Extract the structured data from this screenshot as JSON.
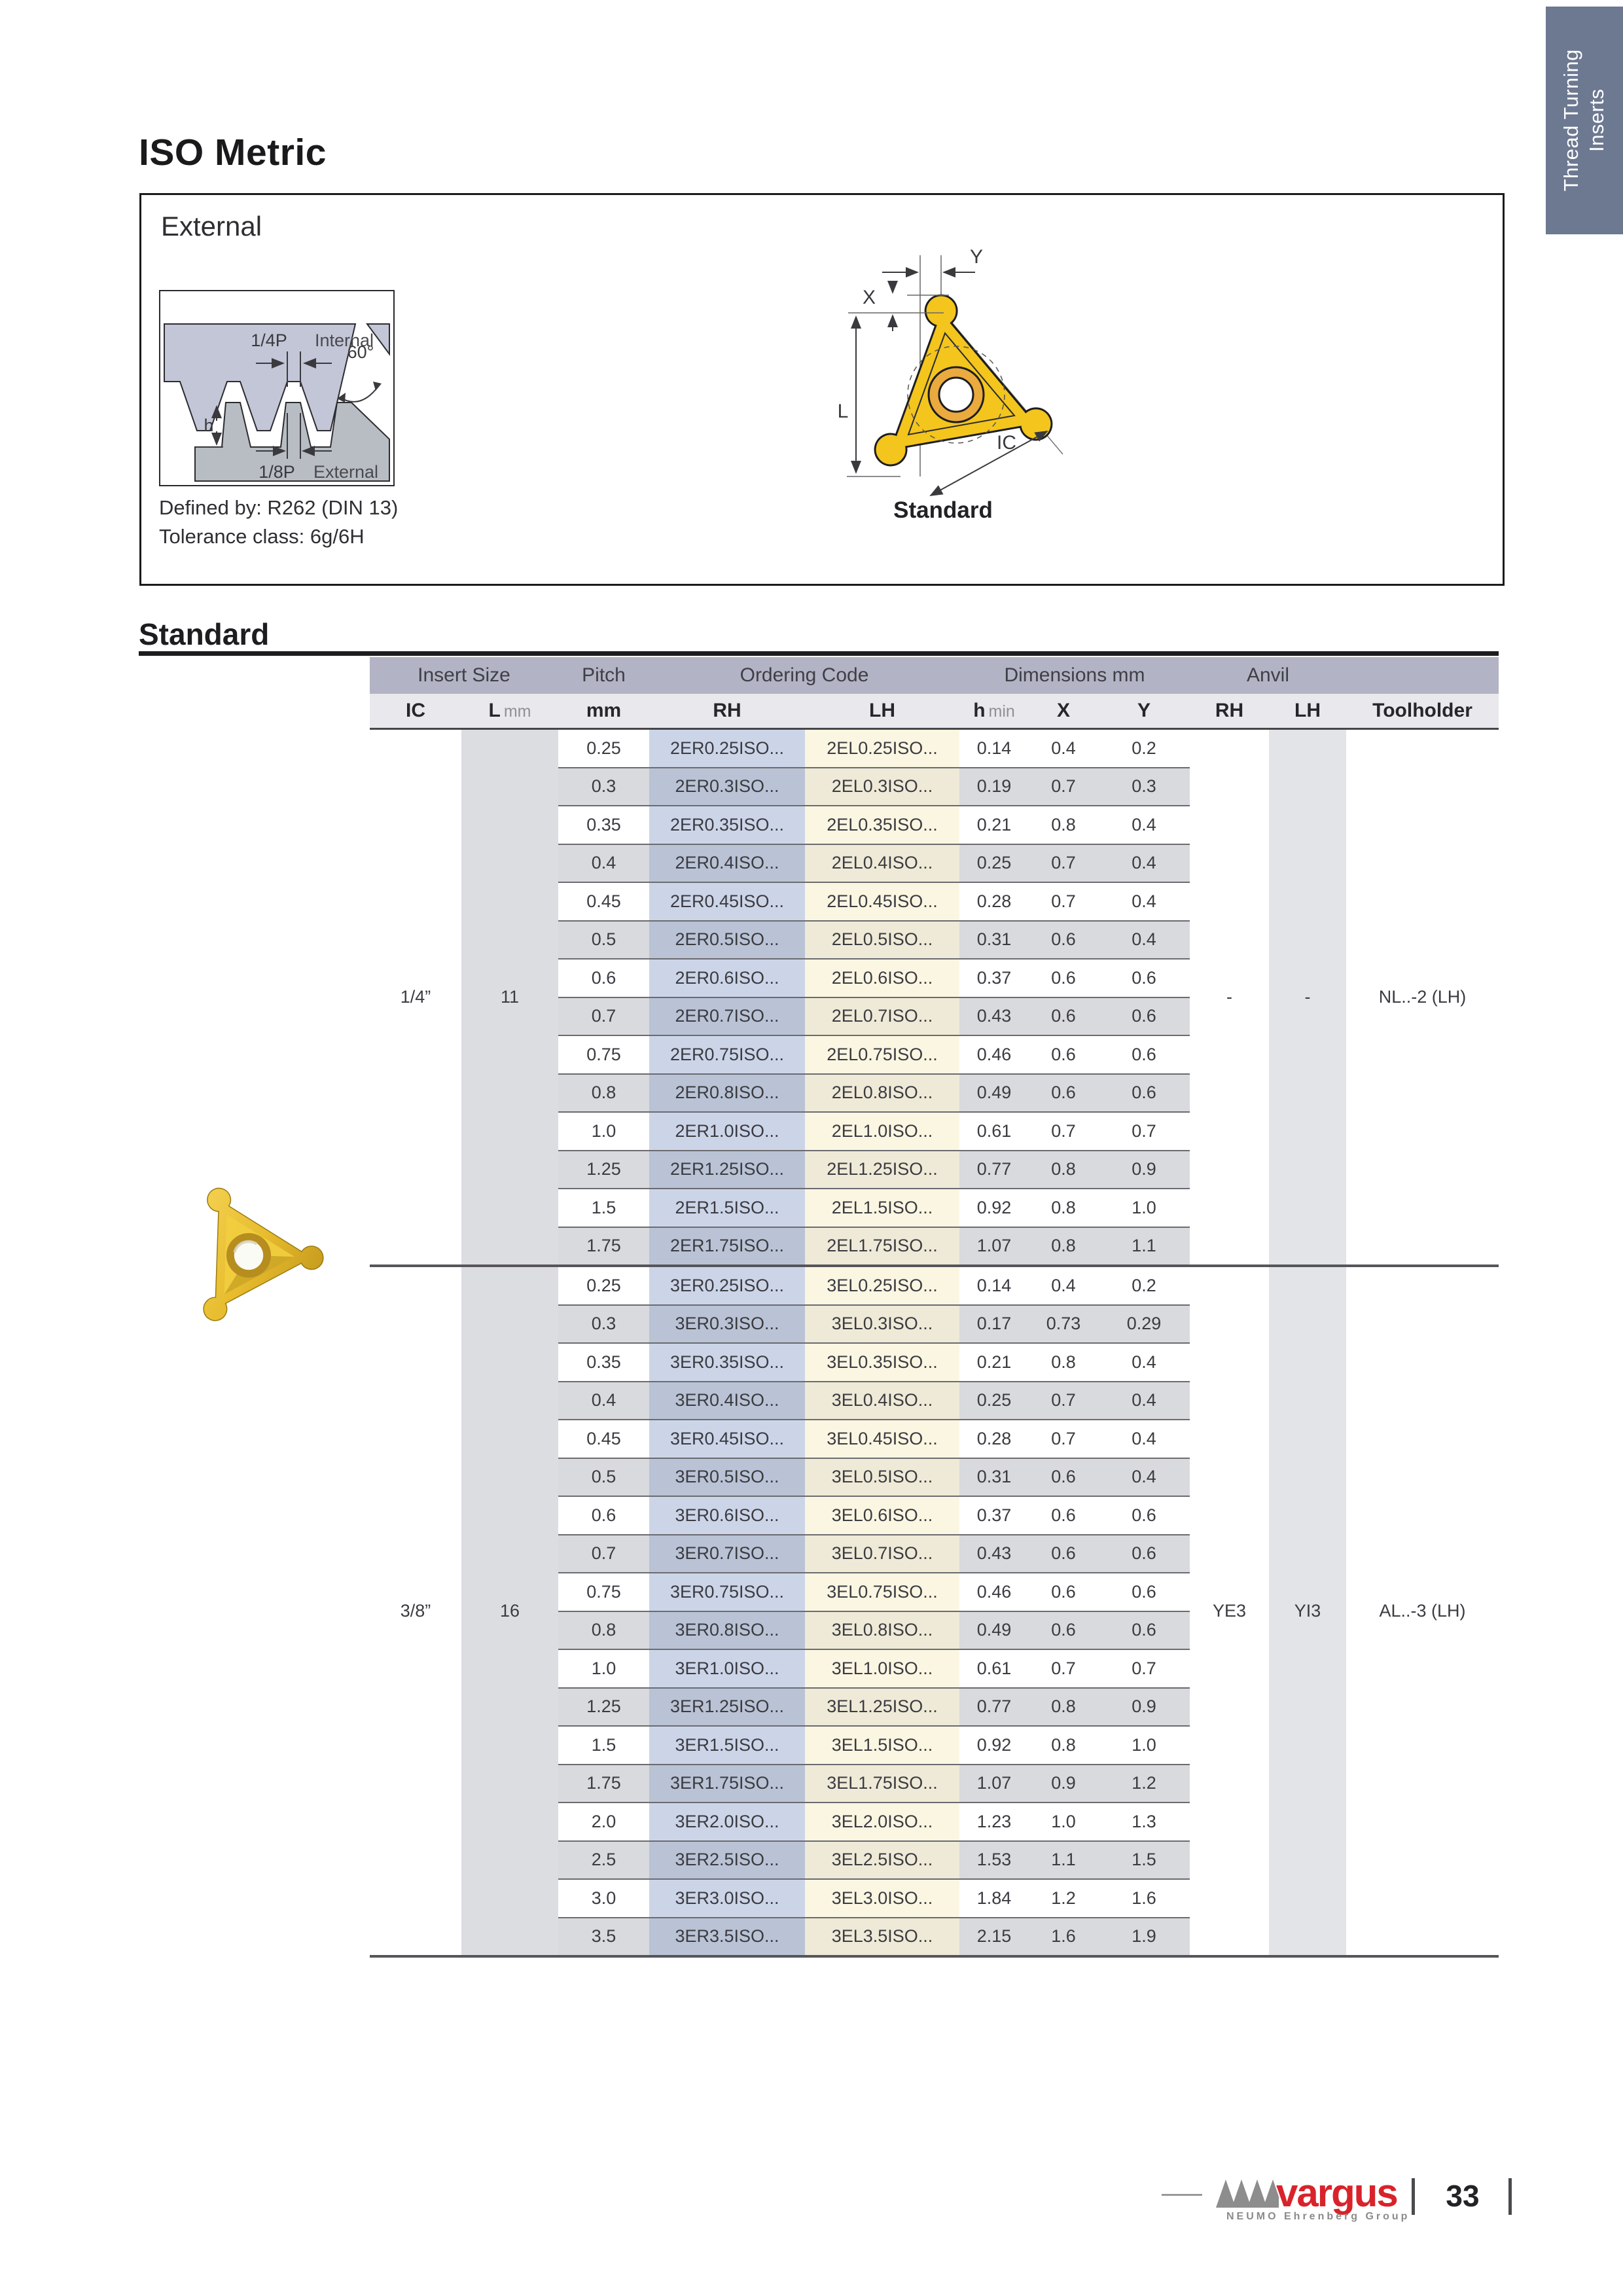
{
  "page": {
    "title": "ISO Metric",
    "tab": {
      "line1": "Thread Turning",
      "line2": "Inserts"
    }
  },
  "external_panel": {
    "title": "External",
    "defined_by": "Defined by: R262 (DIN 13)",
    "tolerance_class": "Tolerance class: 6g/6H",
    "thread_diagram": {
      "quarter_pitch": "1/4P",
      "internal": "Internal",
      "angle": "60°",
      "height": "h",
      "eighth_pitch": "1/8P",
      "external": "External"
    },
    "insert_diagram": {
      "x": "X",
      "y": "Y",
      "l": "L",
      "ic": "IC"
    },
    "insert_caption": "Standard"
  },
  "section": {
    "title": "Standard"
  },
  "table": {
    "group_headers": {
      "insert_size": "Insert Size",
      "pitch": "Pitch",
      "ordering_code": "Ordering Code",
      "dimensions": "Dimensions mm",
      "anvil": "Anvil"
    },
    "columns": {
      "ic": "IC",
      "l": "L",
      "l_unit": "mm",
      "pitch_unit": "mm",
      "rh": "RH",
      "lh": "LH",
      "h": "h",
      "h_unit": "min",
      "x": "X",
      "y": "Y",
      "anvil_rh": "RH",
      "anvil_lh": "LH",
      "toolholder": "Toolholder"
    },
    "groups": [
      {
        "ic": "1/4”",
        "l": "11",
        "anvil_rh": "-",
        "anvil_lh": "-",
        "toolholder": "NL..-2 (LH)",
        "rows": [
          {
            "pitch": "0.25",
            "rh": "2ER0.25ISO...",
            "lh": "2EL0.25ISO...",
            "h": "0.14",
            "x": "0.4",
            "y": "0.2"
          },
          {
            "pitch": "0.3",
            "rh": "2ER0.3ISO...",
            "lh": "2EL0.3ISO...",
            "h": "0.19",
            "x": "0.7",
            "y": "0.3"
          },
          {
            "pitch": "0.35",
            "rh": "2ER0.35ISO...",
            "lh": "2EL0.35ISO...",
            "h": "0.21",
            "x": "0.8",
            "y": "0.4"
          },
          {
            "pitch": "0.4",
            "rh": "2ER0.4ISO...",
            "lh": "2EL0.4ISO...",
            "h": "0.25",
            "x": "0.7",
            "y": "0.4"
          },
          {
            "pitch": "0.45",
            "rh": "2ER0.45ISO...",
            "lh": "2EL0.45ISO...",
            "h": "0.28",
            "x": "0.7",
            "y": "0.4"
          },
          {
            "pitch": "0.5",
            "rh": "2ER0.5ISO...",
            "lh": "2EL0.5ISO...",
            "h": "0.31",
            "x": "0.6",
            "y": "0.4"
          },
          {
            "pitch": "0.6",
            "rh": "2ER0.6ISO...",
            "lh": "2EL0.6ISO...",
            "h": "0.37",
            "x": "0.6",
            "y": "0.6"
          },
          {
            "pitch": "0.7",
            "rh": "2ER0.7ISO...",
            "lh": "2EL0.7ISO...",
            "h": "0.43",
            "x": "0.6",
            "y": "0.6"
          },
          {
            "pitch": "0.75",
            "rh": "2ER0.75ISO...",
            "lh": "2EL0.75ISO...",
            "h": "0.46",
            "x": "0.6",
            "y": "0.6"
          },
          {
            "pitch": "0.8",
            "rh": "2ER0.8ISO...",
            "lh": "2EL0.8ISO...",
            "h": "0.49",
            "x": "0.6",
            "y": "0.6"
          },
          {
            "pitch": "1.0",
            "rh": "2ER1.0ISO...",
            "lh": "2EL1.0ISO...",
            "h": "0.61",
            "x": "0.7",
            "y": "0.7"
          },
          {
            "pitch": "1.25",
            "rh": "2ER1.25ISO...",
            "lh": "2EL1.25ISO...",
            "h": "0.77",
            "x": "0.8",
            "y": "0.9"
          },
          {
            "pitch": "1.5",
            "rh": "2ER1.5ISO...",
            "lh": "2EL1.5ISO...",
            "h": "0.92",
            "x": "0.8",
            "y": "1.0"
          },
          {
            "pitch": "1.75",
            "rh": "2ER1.75ISO...",
            "lh": "2EL1.75ISO...",
            "h": "1.07",
            "x": "0.8",
            "y": "1.1"
          }
        ]
      },
      {
        "ic": "3/8”",
        "l": "16",
        "anvil_rh": "YE3",
        "anvil_lh": "YI3",
        "toolholder": "AL..-3 (LH)",
        "rows": [
          {
            "pitch": "0.25",
            "rh": "3ER0.25ISO...",
            "lh": "3EL0.25ISO...",
            "h": "0.14",
            "x": "0.4",
            "y": "0.2"
          },
          {
            "pitch": "0.3",
            "rh": "3ER0.3ISO...",
            "lh": "3EL0.3ISO...",
            "h": "0.17",
            "x": "0.73",
            "y": "0.29"
          },
          {
            "pitch": "0.35",
            "rh": "3ER0.35ISO...",
            "lh": "3EL0.35ISO...",
            "h": "0.21",
            "x": "0.8",
            "y": "0.4"
          },
          {
            "pitch": "0.4",
            "rh": "3ER0.4ISO...",
            "lh": "3EL0.4ISO...",
            "h": "0.25",
            "x": "0.7",
            "y": "0.4"
          },
          {
            "pitch": "0.45",
            "rh": "3ER0.45ISO...",
            "lh": "3EL0.45ISO...",
            "h": "0.28",
            "x": "0.7",
            "y": "0.4"
          },
          {
            "pitch": "0.5",
            "rh": "3ER0.5ISO...",
            "lh": "3EL0.5ISO...",
            "h": "0.31",
            "x": "0.6",
            "y": "0.4"
          },
          {
            "pitch": "0.6",
            "rh": "3ER0.6ISO...",
            "lh": "3EL0.6ISO...",
            "h": "0.37",
            "x": "0.6",
            "y": "0.6"
          },
          {
            "pitch": "0.7",
            "rh": "3ER0.7ISO...",
            "lh": "3EL0.7ISO...",
            "h": "0.43",
            "x": "0.6",
            "y": "0.6"
          },
          {
            "pitch": "0.75",
            "rh": "3ER0.75ISO...",
            "lh": "3EL0.75ISO...",
            "h": "0.46",
            "x": "0.6",
            "y": "0.6"
          },
          {
            "pitch": "0.8",
            "rh": "3ER0.8ISO...",
            "lh": "3EL0.8ISO...",
            "h": "0.49",
            "x": "0.6",
            "y": "0.6"
          },
          {
            "pitch": "1.0",
            "rh": "3ER1.0ISO...",
            "lh": "3EL1.0ISO...",
            "h": "0.61",
            "x": "0.7",
            "y": "0.7"
          },
          {
            "pitch": "1.25",
            "rh": "3ER1.25ISO...",
            "lh": "3EL1.25ISO...",
            "h": "0.77",
            "x": "0.8",
            "y": "0.9"
          },
          {
            "pitch": "1.5",
            "rh": "3ER1.5ISO...",
            "lh": "3EL1.5ISO...",
            "h": "0.92",
            "x": "0.8",
            "y": "1.0"
          },
          {
            "pitch": "1.75",
            "rh": "3ER1.75ISO...",
            "lh": "3EL1.75ISO...",
            "h": "1.07",
            "x": "0.9",
            "y": "1.2"
          },
          {
            "pitch": "2.0",
            "rh": "3ER2.0ISO...",
            "lh": "3EL2.0ISO...",
            "h": "1.23",
            "x": "1.0",
            "y": "1.3"
          },
          {
            "pitch": "2.5",
            "rh": "3ER2.5ISO...",
            "lh": "3EL2.5ISO...",
            "h": "1.53",
            "x": "1.1",
            "y": "1.5"
          },
          {
            "pitch": "3.0",
            "rh": "3ER3.0ISO...",
            "lh": "3EL3.0ISO...",
            "h": "1.84",
            "x": "1.2",
            "y": "1.6"
          },
          {
            "pitch": "3.5",
            "rh": "3ER3.5ISO...",
            "lh": "3EL3.5ISO...",
            "h": "2.15",
            "x": "1.6",
            "y": "1.9"
          }
        ]
      }
    ]
  },
  "footer": {
    "brand": "vargus",
    "brand_subtitle": "NEUMO Ehrenberg Group",
    "page_number": "33"
  },
  "colors": {
    "tab": "#6d7891",
    "header_band": "#b2b3c4",
    "rh_band": "#ccd5e8",
    "lh_band": "#faf6e2",
    "stripe": "#d9dadd",
    "brand_red": "#d8232b",
    "insert_yellow": "#f3c51d"
  }
}
